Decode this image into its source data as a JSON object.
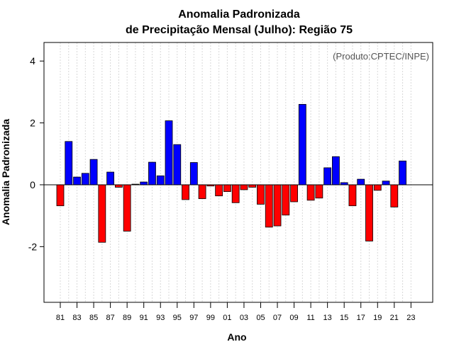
{
  "chart_data": {
    "type": "bar",
    "title_line1": "Anomalia Padronizada",
    "title_line2": "de Precipitação Mensal (Julho): Região 75",
    "xlabel": "Ano",
    "ylabel": "Anomalia Padronizada",
    "source_note": "(Produto:CPTEC/INPE)",
    "ylim": [
      -3.8,
      4.6
    ],
    "yticks": [
      -2,
      0,
      2,
      4
    ],
    "ytick_labels": [
      "-2",
      "0",
      "2",
      "4"
    ],
    "xtick_labels": [
      "81",
      "83",
      "85",
      "87",
      "89",
      "91",
      "93",
      "95",
      "97",
      "99",
      "01",
      "03",
      "05",
      "07",
      "09",
      "11",
      "13",
      "15",
      "17",
      "19",
      "21",
      "23"
    ],
    "categories": [
      "81",
      "82",
      "83",
      "84",
      "85",
      "86",
      "87",
      "88",
      "89",
      "90",
      "91",
      "92",
      "93",
      "94",
      "95",
      "96",
      "97",
      "98",
      "99",
      "00",
      "01",
      "02",
      "03",
      "04",
      "05",
      "06",
      "07",
      "08",
      "09",
      "10",
      "11",
      "12",
      "13",
      "14",
      "15",
      "16",
      "17",
      "18",
      "19",
      "20",
      "21",
      "22",
      "23"
    ],
    "values": [
      -0.68,
      1.4,
      0.25,
      0.37,
      0.82,
      -1.86,
      0.41,
      -0.08,
      -1.5,
      0.02,
      0.09,
      0.73,
      0.29,
      2.07,
      1.3,
      -0.48,
      0.72,
      -0.45,
      -0.04,
      -0.36,
      -0.22,
      -0.58,
      -0.16,
      -0.08,
      -0.63,
      -1.37,
      -1.33,
      -0.98,
      -0.55,
      2.6,
      -0.5,
      -0.43,
      0.55,
      0.91,
      0.07,
      -0.68,
      0.18,
      -1.82,
      -0.18,
      0.12,
      -0.72,
      0.77,
      null
    ],
    "colors": {
      "positive": "#0000ff",
      "negative": "#ff0000",
      "outline": "#000000",
      "grid": "#d8d8d8",
      "zero_line": "#000000"
    }
  }
}
